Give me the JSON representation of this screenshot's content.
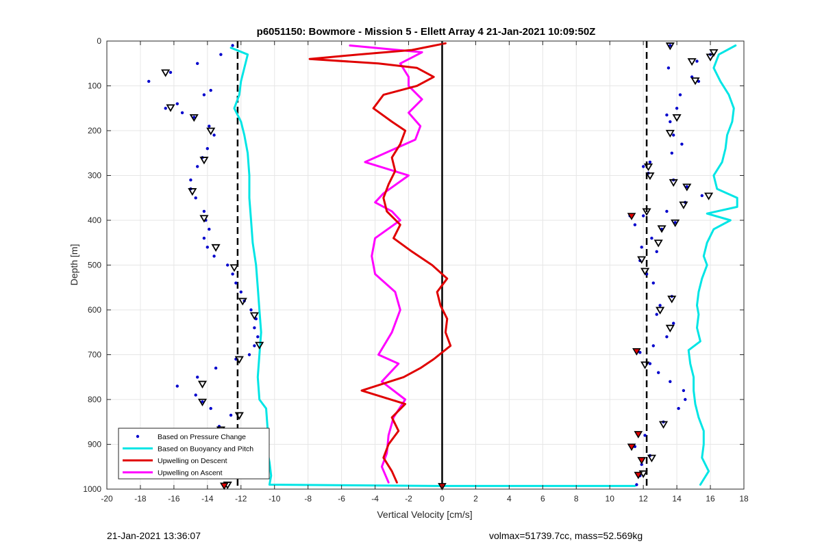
{
  "footer": {
    "left": "21-Jan-2021 13:36:07",
    "right": "volmax=51739.7cc, mass=52.569kg"
  },
  "chart_data": {
    "type": "scatter",
    "title": "p6051150: Bowmore - Mission 5 - Ellett Array 4 21-Jan-2021 10:09:50Z",
    "xlabel": "Vertical Velocity [cm/s]",
    "ylabel": "Depth [m]",
    "xlim": [
      -20,
      18
    ],
    "ylim": [
      0,
      1000
    ],
    "y_reversed": true,
    "grid": true,
    "x_ticks": [
      "-20",
      "-18",
      "-16",
      "-14",
      "-12",
      "-10",
      "-8",
      "-6",
      "-4",
      "-2",
      "0",
      "2",
      "4",
      "6",
      "8",
      "10",
      "12",
      "14",
      "16",
      "18"
    ],
    "y_ticks": [
      "0",
      "100",
      "200",
      "300",
      "400",
      "500",
      "600",
      "700",
      "800",
      "900",
      "1000"
    ],
    "legend_position": "bottom-left",
    "legend": [
      {
        "label": "Based on Pressure Change",
        "color": "#0000cc",
        "style": "dots"
      },
      {
        "label": "Based on Buoyancy and Pitch",
        "color": "#00e5e5",
        "style": "line"
      },
      {
        "label": "Upwelling on Descent",
        "color": "#e00000",
        "style": "line"
      },
      {
        "label": "Upwelling on Ascent",
        "color": "#ff00ff",
        "style": "line"
      }
    ],
    "reference_lines": {
      "dashed_x": [
        -12.2,
        12.2
      ],
      "solid_x": [
        0
      ]
    },
    "series": [
      {
        "name": "Based on Pressure Change (descent)",
        "color": "#0000cc",
        "points": [
          [
            -12.5,
            10
          ],
          [
            -13.2,
            30
          ],
          [
            -14.6,
            50
          ],
          [
            -16.2,
            70
          ],
          [
            -17.5,
            90
          ],
          [
            -13.8,
            110
          ],
          [
            -14.2,
            120
          ],
          [
            -15.8,
            140
          ],
          [
            -16.5,
            150
          ],
          [
            -15.5,
            160
          ],
          [
            -14.8,
            170
          ],
          [
            -13.9,
            190
          ],
          [
            -13.6,
            210
          ],
          [
            -14.0,
            240
          ],
          [
            -14.3,
            260
          ],
          [
            -14.6,
            280
          ],
          [
            -15.0,
            310
          ],
          [
            -15.0,
            330
          ],
          [
            -14.7,
            350
          ],
          [
            -14.2,
            380
          ],
          [
            -14.1,
            400
          ],
          [
            -13.9,
            420
          ],
          [
            -14.2,
            440
          ],
          [
            -14.0,
            460
          ],
          [
            -13.6,
            480
          ],
          [
            -12.8,
            500
          ],
          [
            -12.5,
            520
          ],
          [
            -12.3,
            540
          ],
          [
            -12.0,
            560
          ],
          [
            -11.8,
            580
          ],
          [
            -11.4,
            600
          ],
          [
            -11.1,
            620
          ],
          [
            -11.2,
            640
          ],
          [
            -11.0,
            660
          ],
          [
            -11.2,
            680
          ],
          [
            -11.5,
            700
          ],
          [
            -12.3,
            710
          ],
          [
            -13.5,
            730
          ],
          [
            -14.6,
            750
          ],
          [
            -15.8,
            770
          ],
          [
            -14.7,
            790
          ],
          [
            -14.3,
            805
          ],
          [
            -13.8,
            820
          ],
          [
            -12.6,
            835
          ],
          [
            -13.3,
            860
          ],
          [
            -13.0,
            880
          ],
          [
            -12.5,
            900
          ],
          [
            -13.2,
            930
          ],
          [
            -13.4,
            960
          ],
          [
            -13.0,
            990
          ]
        ]
      },
      {
        "name": "Based on Pressure Change (ascent)",
        "color": "#0000cc",
        "points": [
          [
            13.6,
            10
          ],
          [
            16.0,
            30
          ],
          [
            15.2,
            45
          ],
          [
            13.5,
            60
          ],
          [
            14.9,
            80
          ],
          [
            15.3,
            90
          ],
          [
            14.2,
            120
          ],
          [
            14.0,
            150
          ],
          [
            13.4,
            165
          ],
          [
            13.6,
            180
          ],
          [
            13.8,
            210
          ],
          [
            14.3,
            230
          ],
          [
            13.7,
            250
          ],
          [
            12.4,
            270
          ],
          [
            12.0,
            280
          ],
          [
            12.3,
            295
          ],
          [
            13.8,
            310
          ],
          [
            14.6,
            325
          ],
          [
            15.5,
            345
          ],
          [
            14.5,
            360
          ],
          [
            13.4,
            380
          ],
          [
            12.0,
            390
          ],
          [
            11.2,
            390
          ],
          [
            11.5,
            410
          ],
          [
            13.1,
            420
          ],
          [
            13.9,
            405
          ],
          [
            12.5,
            440
          ],
          [
            11.9,
            460
          ],
          [
            12.8,
            470
          ],
          [
            11.8,
            490
          ],
          [
            12.2,
            520
          ],
          [
            12.6,
            540
          ],
          [
            13.7,
            570
          ],
          [
            13.0,
            590
          ],
          [
            12.8,
            610
          ],
          [
            13.8,
            630
          ],
          [
            13.4,
            660
          ],
          [
            12.6,
            680
          ],
          [
            11.8,
            695
          ],
          [
            12.4,
            720
          ],
          [
            12.9,
            740
          ],
          [
            13.6,
            760
          ],
          [
            14.4,
            780
          ],
          [
            14.5,
            800
          ],
          [
            14.1,
            820
          ],
          [
            13.2,
            850
          ],
          [
            12.1,
            880
          ],
          [
            11.5,
            905
          ],
          [
            12.4,
            925
          ],
          [
            11.9,
            945
          ],
          [
            11.8,
            970
          ],
          [
            11.6,
            990
          ]
        ]
      },
      {
        "name": "Based on Buoyancy and Pitch (descent)",
        "color": "#00e5e5",
        "points": [
          [
            -12.6,
            15
          ],
          [
            -11.6,
            30
          ],
          [
            -11.8,
            60
          ],
          [
            -12.0,
            90
          ],
          [
            -12.1,
            120
          ],
          [
            -12.4,
            150
          ],
          [
            -12.0,
            180
          ],
          [
            -11.8,
            210
          ],
          [
            -11.6,
            250
          ],
          [
            -11.5,
            300
          ],
          [
            -11.5,
            350
          ],
          [
            -11.4,
            400
          ],
          [
            -11.3,
            450
          ],
          [
            -11.1,
            500
          ],
          [
            -11.0,
            550
          ],
          [
            -10.9,
            600
          ],
          [
            -10.8,
            650
          ],
          [
            -10.9,
            700
          ],
          [
            -11.0,
            750
          ],
          [
            -10.9,
            800
          ],
          [
            -10.5,
            820
          ],
          [
            -10.4,
            870
          ],
          [
            -10.5,
            900
          ],
          [
            -10.3,
            940
          ],
          [
            -10.2,
            970
          ],
          [
            -10.3,
            990
          ],
          [
            0,
            993
          ],
          [
            11.5,
            993
          ]
        ]
      },
      {
        "name": "Based on Buoyancy and Pitch (ascent)",
        "color": "#00e5e5",
        "points": [
          [
            17.5,
            10
          ],
          [
            16.5,
            30
          ],
          [
            16.2,
            60
          ],
          [
            16.6,
            90
          ],
          [
            17.1,
            120
          ],
          [
            17.4,
            150
          ],
          [
            17.3,
            180
          ],
          [
            17.0,
            210
          ],
          [
            16.9,
            240
          ],
          [
            16.7,
            270
          ],
          [
            16.2,
            300
          ],
          [
            16.4,
            330
          ],
          [
            17.6,
            350
          ],
          [
            17.6,
            370
          ],
          [
            15.8,
            385
          ],
          [
            17.2,
            400
          ],
          [
            16.2,
            420
          ],
          [
            15.8,
            450
          ],
          [
            15.6,
            480
          ],
          [
            15.8,
            500
          ],
          [
            15.5,
            530
          ],
          [
            15.3,
            560
          ],
          [
            15.2,
            590
          ],
          [
            15.3,
            610
          ],
          [
            15.2,
            640
          ],
          [
            15.4,
            670
          ],
          [
            14.7,
            690
          ],
          [
            14.8,
            720
          ],
          [
            15.0,
            750
          ],
          [
            15.0,
            780
          ],
          [
            15.1,
            810
          ],
          [
            15.3,
            840
          ],
          [
            15.6,
            870
          ],
          [
            15.6,
            900
          ],
          [
            15.5,
            930
          ],
          [
            15.9,
            960
          ],
          [
            15.4,
            990
          ]
        ]
      },
      {
        "name": "Upwelling on Descent",
        "color": "#e00000",
        "points": [
          [
            0.2,
            5
          ],
          [
            -1.8,
            20
          ],
          [
            -5.0,
            30
          ],
          [
            -7.9,
            40
          ],
          [
            -3.8,
            50
          ],
          [
            -1.5,
            60
          ],
          [
            -0.5,
            80
          ],
          [
            -1.5,
            100
          ],
          [
            -3.5,
            120
          ],
          [
            -4.1,
            150
          ],
          [
            -3.0,
            180
          ],
          [
            -2.2,
            200
          ],
          [
            -2.5,
            230
          ],
          [
            -3.0,
            260
          ],
          [
            -2.8,
            290
          ],
          [
            -3.2,
            320
          ],
          [
            -3.5,
            350
          ],
          [
            -3.3,
            380
          ],
          [
            -2.5,
            410
          ],
          [
            -2.9,
            440
          ],
          [
            -1.8,
            470
          ],
          [
            -0.6,
            500
          ],
          [
            0.3,
            530
          ],
          [
            -0.3,
            560
          ],
          [
            -0.1,
            590
          ],
          [
            0.3,
            620
          ],
          [
            0.2,
            650
          ],
          [
            0.5,
            680
          ],
          [
            -0.5,
            710
          ],
          [
            -1.3,
            730
          ],
          [
            -2.3,
            750
          ],
          [
            -4.8,
            780
          ],
          [
            -2.2,
            810
          ],
          [
            -3.0,
            840
          ],
          [
            -2.6,
            870
          ],
          [
            -3.2,
            900
          ],
          [
            -3.5,
            930
          ],
          [
            -3.0,
            960
          ],
          [
            -2.7,
            985
          ]
        ]
      },
      {
        "name": "Upwelling on Ascent",
        "color": "#ff00ff",
        "points": [
          [
            -5.5,
            10
          ],
          [
            -1.2,
            25
          ],
          [
            -2.5,
            50
          ],
          [
            -2.0,
            80
          ],
          [
            -2.0,
            100
          ],
          [
            -1.2,
            130
          ],
          [
            -2.0,
            160
          ],
          [
            -1.3,
            190
          ],
          [
            -1.6,
            220
          ],
          [
            -4.6,
            270
          ],
          [
            -2.0,
            300
          ],
          [
            -3.5,
            340
          ],
          [
            -4.0,
            360
          ],
          [
            -3.0,
            380
          ],
          [
            -2.5,
            400
          ],
          [
            -4.0,
            440
          ],
          [
            -4.2,
            480
          ],
          [
            -4.0,
            520
          ],
          [
            -2.8,
            560
          ],
          [
            -2.5,
            600
          ],
          [
            -3.0,
            650
          ],
          [
            -3.8,
            700
          ],
          [
            -2.6,
            720
          ],
          [
            -3.6,
            760
          ],
          [
            -2.2,
            800
          ],
          [
            -2.9,
            840
          ],
          [
            -3.2,
            880
          ],
          [
            -3.3,
            920
          ],
          [
            -3.6,
            950
          ],
          [
            -3.2,
            985
          ]
        ]
      }
    ],
    "markers": {
      "triangles_open": [
        [
          -16.5,
          70
        ],
        [
          -16.2,
          148
        ],
        [
          -14.8,
          170
        ],
        [
          -13.8,
          200
        ],
        [
          -14.2,
          265
        ],
        [
          -14.9,
          335
        ],
        [
          -14.2,
          395
        ],
        [
          -13.5,
          460
        ],
        [
          -12.4,
          505
        ],
        [
          -11.9,
          580
        ],
        [
          -11.2,
          612
        ],
        [
          -10.9,
          678
        ],
        [
          -12.1,
          710
        ],
        [
          -14.3,
          765
        ],
        [
          -14.3,
          805
        ],
        [
          -12.1,
          835
        ],
        [
          -13.2,
          867
        ],
        [
          -12.4,
          900
        ],
        [
          -12.8,
          990
        ],
        [
          13.6,
          10
        ],
        [
          16.2,
          25
        ],
        [
          16.0,
          35
        ],
        [
          14.9,
          45
        ],
        [
          15.1,
          88
        ],
        [
          14.0,
          170
        ],
        [
          13.6,
          205
        ],
        [
          12.3,
          280
        ],
        [
          12.4,
          300
        ],
        [
          13.8,
          315
        ],
        [
          14.6,
          325
        ],
        [
          15.9,
          345
        ],
        [
          14.4,
          365
        ],
        [
          12.2,
          380
        ],
        [
          13.1,
          418
        ],
        [
          13.9,
          405
        ],
        [
          12.9,
          450
        ],
        [
          11.9,
          487
        ],
        [
          12.1,
          513
        ],
        [
          13.7,
          575
        ],
        [
          13.0,
          600
        ],
        [
          13.6,
          640
        ],
        [
          12.1,
          722
        ],
        [
          13.2,
          855
        ],
        [
          12.5,
          930
        ],
        [
          12.0,
          965
        ]
      ],
      "triangles_filled_red": [
        [
          -13.0,
          992
        ],
        [
          11.3,
          390
        ],
        [
          11.6,
          692
        ],
        [
          11.7,
          877
        ],
        [
          11.3,
          905
        ],
        [
          11.9,
          935
        ],
        [
          11.7,
          968
        ],
        [
          0.0,
          993
        ]
      ]
    }
  }
}
